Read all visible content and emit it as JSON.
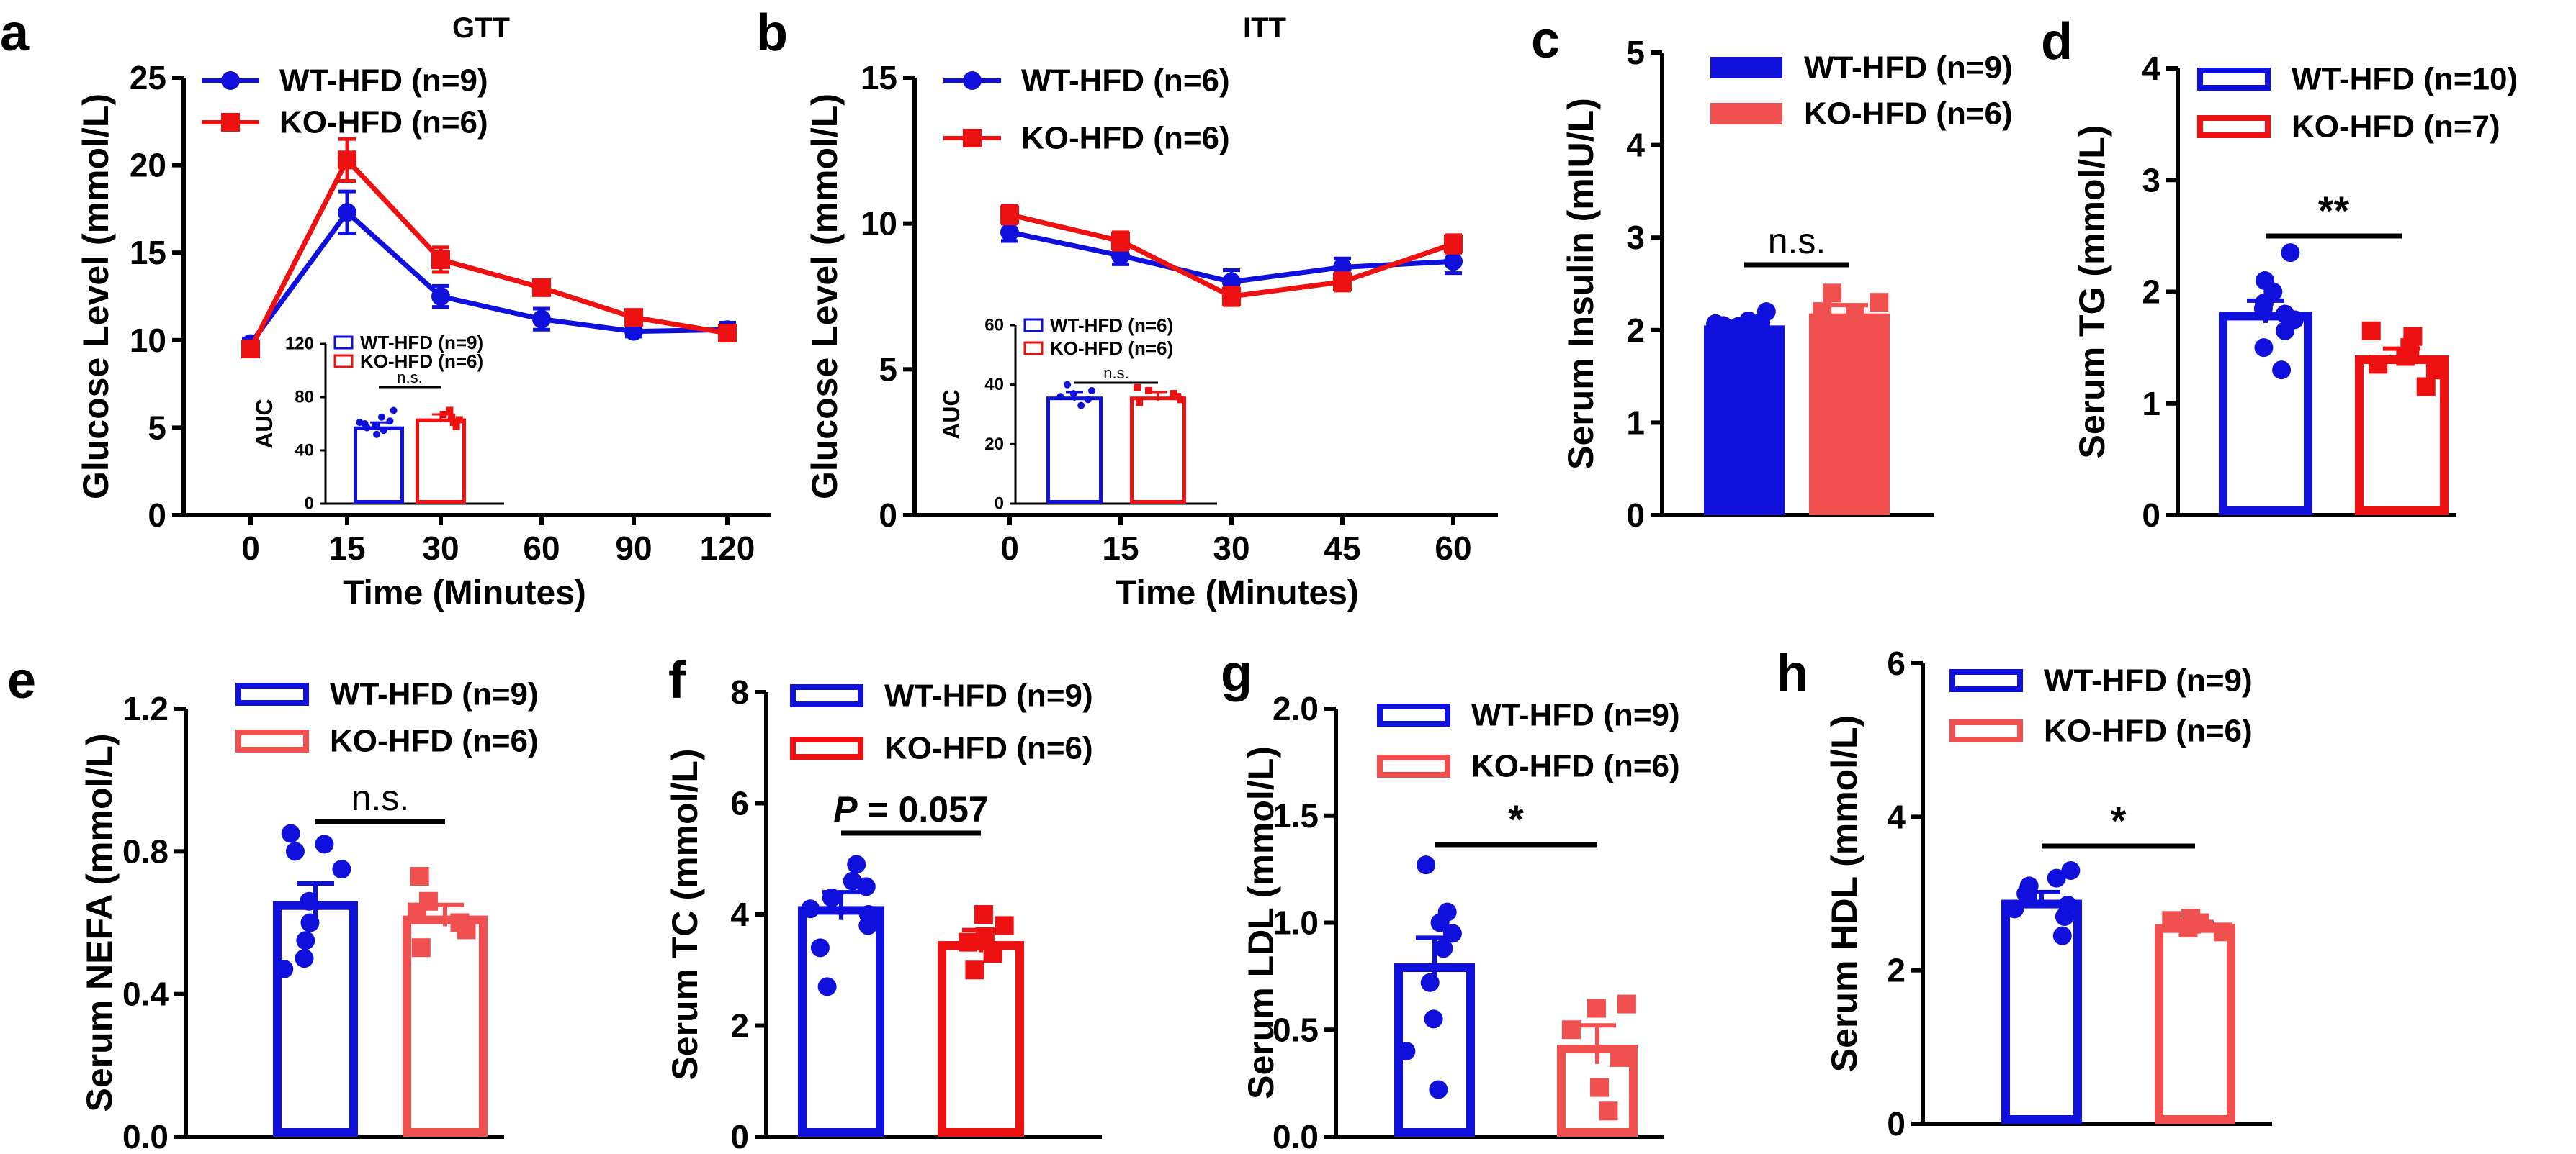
{
  "figure": {
    "colors": {
      "wt": "#1010dd",
      "ko": "#ee1111",
      "ko_light": "#f05050",
      "axis": "#000000"
    }
  },
  "chart_data": [
    {
      "panel": "a",
      "type": "line",
      "title": "GTT",
      "xlabel": "Time (Minutes)",
      "ylabel": "Glucose Level (mmol/L)",
      "x": [
        0,
        15,
        30,
        60,
        90,
        120
      ],
      "xticks": [
        "0",
        "15",
        "30",
        "60",
        "90",
        "120"
      ],
      "ylim": [
        0,
        25
      ],
      "yticks": [
        0,
        5,
        10,
        15,
        20,
        25
      ],
      "series": [
        {
          "name": "WT-HFD (n=9)",
          "color": "#1010dd",
          "marker": "circle",
          "values": [
            9.8,
            17.3,
            12.5,
            11.2,
            10.5,
            10.6
          ],
          "errors": [
            0.3,
            1.2,
            0.6,
            0.6,
            0.3,
            0.4
          ]
        },
        {
          "name": "KO-HFD (n=6)",
          "color": "#ee1111",
          "marker": "square",
          "values": [
            9.5,
            20.3,
            14.6,
            13.0,
            11.3,
            10.4
          ],
          "errors": [
            0.3,
            1.2,
            0.7,
            0.4,
            0.3,
            0.4
          ]
        }
      ],
      "inset": {
        "type": "bar",
        "ylabel": "AUC",
        "ylim": [
          0,
          120
        ],
        "yticks": [
          0,
          40,
          80,
          120
        ],
        "annotation": "n.s.",
        "series": [
          {
            "name": "WT-HFD (n=9)",
            "color": "#1010dd",
            "style": "hollow",
            "value": 58,
            "error": 3,
            "points": [
              52,
              55,
              57,
              58,
              60,
              61,
              62,
              65,
              70
            ]
          },
          {
            "name": "KO-HFD (n=6)",
            "color": "#ee1111",
            "style": "hollow",
            "value": 64,
            "error": 3,
            "points": [
              58,
              61,
              63,
              65,
              67,
              70
            ]
          }
        ]
      }
    },
    {
      "panel": "b",
      "type": "line",
      "title": "ITT",
      "xlabel": "Time (Minutes)",
      "ylabel": "Glucose Level (mmol/L)",
      "x": [
        0,
        15,
        30,
        45,
        60
      ],
      "xticks": [
        "0",
        "15",
        "30",
        "45",
        "60"
      ],
      "ylim": [
        0,
        15
      ],
      "yticks": [
        0,
        5,
        10,
        15
      ],
      "series": [
        {
          "name": "WT-HFD (n=6)",
          "color": "#1010dd",
          "marker": "circle",
          "values": [
            9.7,
            8.9,
            8.0,
            8.5,
            8.7
          ],
          "errors": [
            0.3,
            0.3,
            0.4,
            0.3,
            0.4
          ]
        },
        {
          "name": "KO-HFD (n=6)",
          "color": "#ee1111",
          "marker": "square",
          "values": [
            10.3,
            9.4,
            7.5,
            8.0,
            9.3
          ],
          "errors": [
            0.3,
            0.3,
            0.3,
            0.3,
            0.3
          ]
        }
      ],
      "inset": {
        "type": "bar",
        "ylabel": "AUC",
        "ylim": [
          0,
          60
        ],
        "yticks": [
          0,
          20,
          40,
          60
        ],
        "annotation": "n.s.",
        "series": [
          {
            "name": "WT-HFD (n=6)",
            "color": "#1010dd",
            "style": "hollow",
            "value": 36,
            "error": 1.5,
            "points": [
              33,
              35,
              36,
              37,
              38,
              40
            ]
          },
          {
            "name": "KO-HFD (n=6)",
            "color": "#ee1111",
            "style": "hollow",
            "value": 36,
            "error": 1.5,
            "points": [
              34,
              35,
              36,
              37,
              38,
              39
            ]
          }
        ]
      }
    },
    {
      "panel": "c",
      "type": "bar",
      "ylabel": "Serum Insulin (mIU/L)",
      "ylim": [
        0,
        5
      ],
      "yticks": [
        0,
        1,
        2,
        3,
        4,
        5
      ],
      "annotation": "n.s.",
      "series": [
        {
          "name": "WT-HFD (n=9)",
          "color": "#1010dd",
          "style": "solid",
          "value": 2.05,
          "error": 0.04,
          "points": [
            1.95,
            2.0,
            2.02,
            2.04,
            2.05,
            2.07,
            2.08,
            2.1,
            2.2
          ]
        },
        {
          "name": "KO-HFD (n=6)",
          "color": "#f05050",
          "style": "solid",
          "value": 2.18,
          "error": 0.09,
          "points": [
            1.95,
            2.05,
            2.15,
            2.2,
            2.3,
            2.4
          ]
        }
      ]
    },
    {
      "panel": "d",
      "type": "bar",
      "ylabel": "Serum TG (mmol/L)",
      "ylim": [
        0,
        4
      ],
      "yticks": [
        0,
        1,
        2,
        3,
        4
      ],
      "annotation": "**",
      "series": [
        {
          "name": "WT-HFD (n=10)",
          "color": "#1010dd",
          "style": "hollow",
          "value": 1.82,
          "error": 0.1,
          "points": [
            1.3,
            1.5,
            1.65,
            1.75,
            1.8,
            1.85,
            1.9,
            2.0,
            2.1,
            2.35
          ]
        },
        {
          "name": "KO-HFD (n=7)",
          "color": "#ee1111",
          "style": "hollow",
          "value": 1.43,
          "error": 0.06,
          "points": [
            1.15,
            1.3,
            1.35,
            1.42,
            1.5,
            1.6,
            1.65
          ]
        }
      ]
    },
    {
      "panel": "e",
      "type": "bar",
      "ylabel": "Serum NEFA (mmol/L)",
      "ylim": [
        0,
        1.2
      ],
      "yticks": [
        "0.0",
        "0.4",
        "0.8",
        "1.2"
      ],
      "annotation": "n.s.",
      "series": [
        {
          "name": "WT-HFD (n=9)",
          "color": "#1010dd",
          "style": "hollow",
          "value": 0.66,
          "error": 0.05,
          "points": [
            0.47,
            0.5,
            0.55,
            0.6,
            0.66,
            0.75,
            0.8,
            0.82,
            0.85
          ]
        },
        {
          "name": "KO-HFD (n=6)",
          "color": "#f05050",
          "style": "hollow",
          "value": 0.62,
          "error": 0.03,
          "points": [
            0.53,
            0.58,
            0.6,
            0.63,
            0.66,
            0.73
          ]
        }
      ]
    },
    {
      "panel": "f",
      "type": "bar",
      "ylabel": "Serum TC (mmol/L)",
      "ylim": [
        0,
        8
      ],
      "yticks": [
        0,
        2,
        4,
        6,
        8
      ],
      "annotation": {
        "italic": "P",
        "rest": " = 0.057"
      },
      "series": [
        {
          "name": "WT-HFD (n=9)",
          "color": "#1010dd",
          "style": "hollow",
          "value": 4.15,
          "error": 0.25,
          "points": [
            2.7,
            3.4,
            3.8,
            4.0,
            4.1,
            4.3,
            4.5,
            4.6,
            4.9
          ]
        },
        {
          "name": "KO-HFD (n=6)",
          "color": "#ee1111",
          "style": "hollow",
          "value": 3.52,
          "error": 0.2,
          "points": [
            3.0,
            3.3,
            3.5,
            3.6,
            3.8,
            4.0
          ]
        }
      ]
    },
    {
      "panel": "g",
      "type": "bar",
      "ylabel": "Serum LDL (mmol/L)",
      "ylim": [
        0,
        2
      ],
      "yticks": [
        "0.0",
        "0.5",
        "1.0",
        "1.5",
        "2.0"
      ],
      "annotation": "*",
      "series": [
        {
          "name": "WT-HFD (n=9)",
          "color": "#1010dd",
          "style": "hollow",
          "value": 0.81,
          "error": 0.12,
          "points": [
            0.22,
            0.4,
            0.55,
            0.72,
            0.88,
            0.95,
            1.0,
            1.05,
            1.27
          ]
        },
        {
          "name": "KO-HFD (n=6)",
          "color": "#f05050",
          "style": "hollow",
          "value": 0.43,
          "error": 0.09,
          "points": [
            0.12,
            0.23,
            0.37,
            0.5,
            0.6,
            0.62
          ]
        }
      ]
    },
    {
      "panel": "h",
      "type": "bar",
      "ylabel": "Serum HDL (mmol/L)",
      "ylim": [
        0,
        6
      ],
      "yticks": [
        0,
        2,
        4,
        6
      ],
      "annotation": "*",
      "series": [
        {
          "name": "WT-HFD (n=9)",
          "color": "#1010dd",
          "style": "hollow",
          "value": 2.92,
          "error": 0.1,
          "points": [
            2.45,
            2.7,
            2.8,
            2.85,
            2.95,
            3.0,
            3.1,
            3.2,
            3.3
          ]
        },
        {
          "name": "KO-HFD (n=6)",
          "color": "#f05050",
          "style": "hollow",
          "value": 2.6,
          "error": 0.03,
          "points": [
            2.5,
            2.55,
            2.6,
            2.62,
            2.65,
            2.68
          ]
        }
      ]
    }
  ]
}
